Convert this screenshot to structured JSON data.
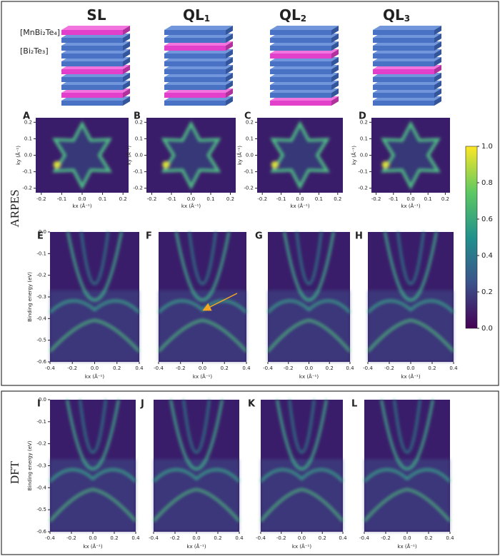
{
  "headers": [
    {
      "text": "SL"
    },
    {
      "text": "QL",
      "sub": "1"
    },
    {
      "text": "QL",
      "sub": "2"
    },
    {
      "text": "QL",
      "sub": "3"
    }
  ],
  "layer_labels": [
    "[MnBi₂Te₄]",
    "[Bi₂Te₃]"
  ],
  "section_labels": {
    "arpes": "ARPES",
    "dft": "DFT"
  },
  "fermi_surface_panels": [
    "A",
    "B",
    "C",
    "D"
  ],
  "fs_axes": {
    "xticks": [
      "-0.2",
      "-0.1",
      "0.0",
      "0.1",
      "0.2"
    ],
    "yticks": [
      "0.2",
      "0.1",
      "0.0",
      "-0.1",
      "-0.2"
    ],
    "xlabel": "kx (Å⁻¹)",
    "ylabel": "ky (Å⁻¹)"
  },
  "band_panels": {
    "arpes": [
      "E",
      "F",
      "G",
      "H"
    ],
    "dft": [
      "I",
      "J",
      "K",
      "L"
    ]
  },
  "band_axes": {
    "xticks": [
      "-0.4",
      "-0.2",
      "0.0",
      "0.2",
      "0.4"
    ],
    "yticks": [
      "0.0",
      "-0.1",
      "-0.2",
      "-0.3",
      "-0.4",
      "-0.5",
      "-0.6"
    ],
    "xlabel": "kx (Å⁻¹)",
    "ylabel": "Binding energy (eV)"
  },
  "colorbar": {
    "ticks": [
      "1.0",
      "0.8",
      "0.6",
      "0.4",
      "0.2",
      "0.0"
    ]
  }
}
